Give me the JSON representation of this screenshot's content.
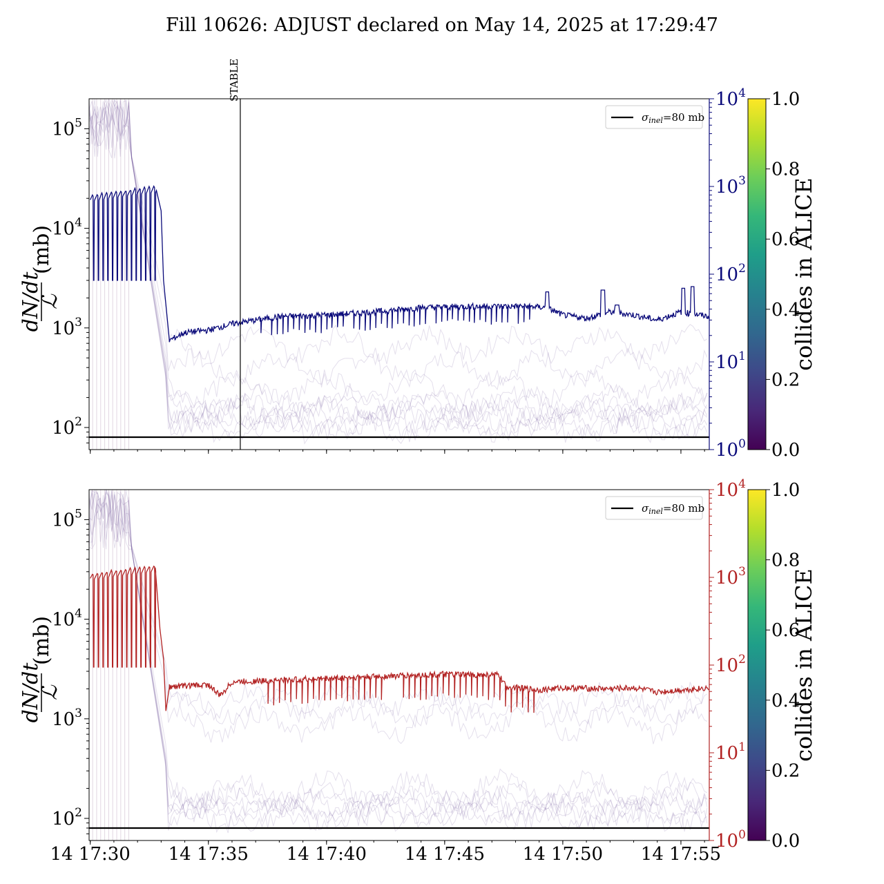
{
  "figure": {
    "title": "Fill 10626: ADJUST declared on May 14, 2025 at 17:29:47"
  },
  "chart_data": [
    {
      "type": "line",
      "panel": "top",
      "ylabel_frac_numer": "dN/dt",
      "ylabel_frac_denom": "ℒ",
      "ylabel_unit": "(mb)",
      "yscale": "log",
      "ylim": [
        60,
        200000
      ],
      "yticks": [
        {
          "v": 100,
          "b": "10",
          "e": "2"
        },
        {
          "v": 1000,
          "b": "10",
          "e": "3"
        },
        {
          "v": 10000,
          "b": "10",
          "e": "4"
        },
        {
          "v": 100000,
          "b": "10",
          "e": "5"
        }
      ],
      "y2scale": "log",
      "y2lim": [
        1,
        10000
      ],
      "y2ticks": [
        {
          "v": 1,
          "b": "10",
          "e": "0"
        },
        {
          "v": 10,
          "b": "10",
          "e": "1"
        },
        {
          "v": 100,
          "b": "10",
          "e": "2"
        },
        {
          "v": 1000,
          "b": "10",
          "e": "3"
        },
        {
          "v": 10000,
          "b": "10",
          "e": "4"
        }
      ],
      "y2color": "#0a0a7a",
      "series_color": "#0a0a7a",
      "xlim_min": [
        29.95,
        56.2
      ],
      "xticks": [
        {
          "m": 30,
          "label": ""
        },
        {
          "m": 35,
          "label": ""
        },
        {
          "m": 40,
          "label": ""
        },
        {
          "m": 45,
          "label": ""
        },
        {
          "m": 50,
          "label": ""
        },
        {
          "m": 55,
          "label": ""
        }
      ],
      "hline": {
        "y": 80,
        "color": "#000000",
        "legend": "σ",
        "legend_sub": "inel",
        "legend_rest": "=80 mb"
      },
      "vline": {
        "x_min": 36.35,
        "label": "STABLE"
      },
      "main_series": {
        "osc_start": 30.0,
        "osc_end": 32.8,
        "osc_n": 14,
        "osc_high": 21000,
        "osc_high_end": 26000,
        "osc_low": 3000,
        "drop_points": [
          [
            32.8,
            24000
          ],
          [
            33.0,
            15000
          ],
          [
            33.1,
            3000
          ],
          [
            33.25,
            1300
          ],
          [
            33.35,
            750
          ]
        ],
        "base": [
          [
            33.35,
            750
          ],
          [
            34.0,
            900
          ],
          [
            35.0,
            950
          ],
          [
            36.0,
            1100
          ],
          [
            37.0,
            1200
          ],
          [
            38.0,
            1300
          ],
          [
            40.0,
            1350
          ],
          [
            42.0,
            1450
          ],
          [
            44.0,
            1600
          ],
          [
            46.0,
            1650
          ],
          [
            48.5,
            1650
          ],
          [
            49.3,
            1600
          ],
          [
            50.0,
            1350
          ],
          [
            51.0,
            1250
          ],
          [
            52.0,
            1450
          ],
          [
            53.0,
            1350
          ],
          [
            54.0,
            1200
          ],
          [
            55.0,
            1450
          ],
          [
            56.2,
            1300
          ]
        ],
        "dips": {
          "start": 37.2,
          "end": 48.8,
          "n": 50,
          "depth": 0.7
        },
        "spikes": [
          [
            49.35,
            2300
          ],
          [
            51.7,
            2400
          ],
          [
            52.3,
            1700
          ],
          [
            55.1,
            2500
          ],
          [
            55.5,
            2600
          ]
        ]
      },
      "bg_lines": {
        "count": 10,
        "start_level": 100000,
        "level_after": [
          400,
          180,
          150,
          140,
          130,
          120,
          115,
          110,
          700,
          250
        ]
      }
    },
    {
      "type": "line",
      "panel": "bottom",
      "ylabel_frac_numer": "dN/dt",
      "ylabel_frac_denom": "ℒ",
      "ylabel_unit": "(mb)",
      "yscale": "log",
      "ylim": [
        60,
        200000
      ],
      "yticks": [
        {
          "v": 100,
          "b": "10",
          "e": "2"
        },
        {
          "v": 1000,
          "b": "10",
          "e": "3"
        },
        {
          "v": 10000,
          "b": "10",
          "e": "4"
        },
        {
          "v": 100000,
          "b": "10",
          "e": "5"
        }
      ],
      "y2scale": "log",
      "y2lim": [
        1,
        10000
      ],
      "y2ticks": [
        {
          "v": 1,
          "b": "10",
          "e": "0"
        },
        {
          "v": 10,
          "b": "10",
          "e": "1"
        },
        {
          "v": 100,
          "b": "10",
          "e": "2"
        },
        {
          "v": 1000,
          "b": "10",
          "e": "3"
        },
        {
          "v": 10000,
          "b": "10",
          "e": "4"
        }
      ],
      "y2color": "#b22222",
      "series_color": "#b22222",
      "xlim_min": [
        29.95,
        56.2
      ],
      "xticks": [
        {
          "m": 30,
          "label": "14 17:30"
        },
        {
          "m": 35,
          "label": "14 17:35"
        },
        {
          "m": 40,
          "label": "14 17:40"
        },
        {
          "m": 45,
          "label": "14 17:45"
        },
        {
          "m": 50,
          "label": "14 17:50"
        },
        {
          "m": 55,
          "label": "14 17:55"
        }
      ],
      "hline": {
        "y": 80,
        "color": "#000000",
        "legend": "σ",
        "legend_sub": "inel",
        "legend_rest": "=80 mb"
      },
      "main_series": {
        "osc_start": 30.0,
        "osc_end": 32.8,
        "osc_n": 14,
        "osc_high": 28000,
        "osc_high_end": 34000,
        "osc_low": 3300,
        "drop_points": [
          [
            32.75,
            33000
          ],
          [
            32.95,
            8000
          ],
          [
            33.1,
            4000
          ],
          [
            33.2,
            1200
          ],
          [
            33.35,
            2100
          ]
        ],
        "base": [
          [
            33.35,
            2100
          ],
          [
            34.0,
            2150
          ],
          [
            35.0,
            2200
          ],
          [
            35.5,
            1700
          ],
          [
            36.0,
            2350
          ],
          [
            37.2,
            2400
          ],
          [
            40.0,
            2550
          ],
          [
            43.0,
            2700
          ],
          [
            45.0,
            2800
          ],
          [
            47.3,
            2750
          ],
          [
            47.6,
            2100
          ],
          [
            49.0,
            1950
          ],
          [
            50.0,
            2050
          ],
          [
            52.0,
            2000
          ],
          [
            53.0,
            2050
          ],
          [
            54.0,
            1850
          ],
          [
            55.0,
            1950
          ],
          [
            56.2,
            2050
          ]
        ],
        "dips": {
          "start": 37.5,
          "end": 49.0,
          "n": 48,
          "depth": 0.6
        },
        "spikes": []
      },
      "bg_lines": {
        "count": 10,
        "start_level": 100000,
        "level_after": [
          1300,
          900,
          150,
          140,
          130,
          120,
          125,
          115,
          1500,
          200
        ]
      }
    }
  ],
  "colorbar": {
    "label": "collides in ALICE",
    "cmap": [
      "#440154",
      "#482878",
      "#3e4989",
      "#31688e",
      "#26828e",
      "#1f9e89",
      "#35b779",
      "#6ece58",
      "#b5de2b",
      "#fde725"
    ],
    "ticks": [
      "0.0",
      "0.2",
      "0.4",
      "0.6",
      "0.8",
      "1.0"
    ]
  }
}
